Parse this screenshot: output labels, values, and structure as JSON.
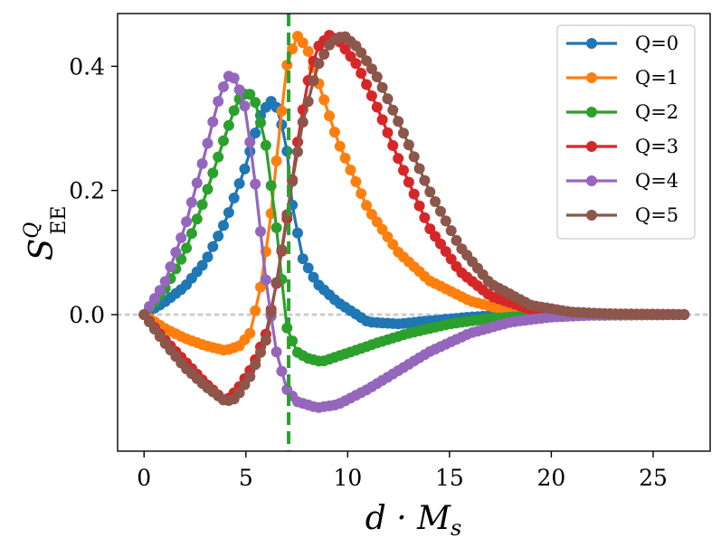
{
  "chart_data": {
    "type": "line",
    "title": "",
    "xlabel": "d · M_s",
    "ylabel": "S_EE^Q",
    "xlabel_parts": {
      "main": "d · M",
      "sub": "s"
    },
    "ylabel_parts": {
      "main": "S",
      "sup": "Q",
      "sub": "EE"
    },
    "xlim": [
      -1.3,
      27.8
    ],
    "ylim": [
      -0.22,
      0.485
    ],
    "xticks": [
      0,
      5,
      10,
      15,
      20,
      25
    ],
    "xtick_labels": [
      "0",
      "5",
      "10",
      "15",
      "20",
      "25"
    ],
    "yticks": [
      0.0,
      0.2,
      0.4
    ],
    "ytick_labels": [
      "0.0",
      "0.2",
      "0.4"
    ],
    "zero_line": {
      "y": 0.0,
      "style": "dotted",
      "color": "#cccccc"
    },
    "vertical_line": {
      "x": 7.1,
      "style": "dashed",
      "color": "#2ca02c"
    },
    "legend_position": "top-right",
    "series": [
      {
        "name": "Q=0",
        "color": "#1f77b4",
        "peak_x": 6.2,
        "peak_y": 0.345,
        "points": [
          [
            0,
            0
          ],
          [
            1,
            0.02
          ],
          [
            2,
            0.045
          ],
          [
            3,
            0.085
          ],
          [
            4,
            0.15
          ],
          [
            5,
            0.24
          ],
          [
            5.7,
            0.32
          ],
          [
            6.2,
            0.345
          ],
          [
            6.6,
            0.33
          ],
          [
            7,
            0.27
          ],
          [
            7.3,
            0.17
          ],
          [
            7.8,
            0.09
          ],
          [
            8.5,
            0.05
          ],
          [
            9.5,
            0.02
          ],
          [
            11,
            -0.012
          ],
          [
            12.5,
            -0.015
          ],
          [
            14,
            -0.01
          ],
          [
            16,
            -0.004
          ],
          [
            18,
            0
          ],
          [
            20,
            0.001
          ],
          [
            26.7,
            0
          ]
        ]
      },
      {
        "name": "Q=1",
        "color": "#ff7f0e",
        "peak_x": 7.5,
        "peak_y": 0.45,
        "points": [
          [
            0,
            0
          ],
          [
            1,
            -0.022
          ],
          [
            2,
            -0.038
          ],
          [
            3,
            -0.05
          ],
          [
            4,
            -0.058
          ],
          [
            4.7,
            -0.05
          ],
          [
            5.2,
            -0.03
          ],
          [
            5.7,
            0.04
          ],
          [
            6.2,
            0.15
          ],
          [
            6.6,
            0.28
          ],
          [
            7,
            0.4
          ],
          [
            7.5,
            0.45
          ],
          [
            8,
            0.43
          ],
          [
            8.5,
            0.38
          ],
          [
            9.5,
            0.28
          ],
          [
            11,
            0.17
          ],
          [
            12.5,
            0.1
          ],
          [
            14,
            0.055
          ],
          [
            16,
            0.022
          ],
          [
            18,
            0.005
          ],
          [
            20,
            0.001
          ],
          [
            26.7,
            0
          ]
        ]
      },
      {
        "name": "Q=2",
        "color": "#2ca02c",
        "peak_x": 5.1,
        "peak_y": 0.36,
        "points": [
          [
            0,
            0
          ],
          [
            1,
            0.04
          ],
          [
            2,
            0.1
          ],
          [
            3,
            0.19
          ],
          [
            4,
            0.29
          ],
          [
            4.6,
            0.345
          ],
          [
            5.1,
            0.36
          ],
          [
            5.5,
            0.34
          ],
          [
            6,
            0.27
          ],
          [
            6.5,
            0.14
          ],
          [
            7,
            -0.02
          ],
          [
            7.5,
            -0.06
          ],
          [
            8,
            -0.07
          ],
          [
            8.7,
            -0.076
          ],
          [
            10,
            -0.062
          ],
          [
            11.5,
            -0.045
          ],
          [
            13,
            -0.03
          ],
          [
            15,
            -0.015
          ],
          [
            17,
            -0.006
          ],
          [
            19,
            -0.002
          ],
          [
            26.7,
            0
          ]
        ]
      },
      {
        "name": "Q=3",
        "color": "#d62728",
        "peak_x": 9.1,
        "peak_y": 0.45,
        "points": [
          [
            0,
            0
          ],
          [
            1,
            -0.04
          ],
          [
            2,
            -0.075
          ],
          [
            3,
            -0.11
          ],
          [
            4,
            -0.14
          ],
          [
            4.6,
            -0.12
          ],
          [
            5.3,
            -0.085
          ],
          [
            6,
            -0.03
          ],
          [
            6.5,
            0.05
          ],
          [
            7,
            0.15
          ],
          [
            7.5,
            0.27
          ],
          [
            8,
            0.37
          ],
          [
            8.5,
            0.43
          ],
          [
            9.1,
            0.45
          ],
          [
            9.6,
            0.44
          ],
          [
            10.5,
            0.4
          ],
          [
            11.5,
            0.33
          ],
          [
            12.5,
            0.25
          ],
          [
            14,
            0.14
          ],
          [
            15.5,
            0.07
          ],
          [
            17,
            0.03
          ],
          [
            19,
            0.008
          ],
          [
            21,
            0.002
          ],
          [
            26.7,
            0
          ]
        ]
      },
      {
        "name": "Q=4",
        "color": "#9467bd",
        "peak_x": 4.1,
        "peak_y": 0.385,
        "points": [
          [
            0,
            0
          ],
          [
            1,
            0.05
          ],
          [
            2,
            0.14
          ],
          [
            3,
            0.26
          ],
          [
            3.6,
            0.34
          ],
          [
            4.1,
            0.385
          ],
          [
            4.5,
            0.38
          ],
          [
            5,
            0.33
          ],
          [
            5.5,
            0.2
          ],
          [
            6,
            0.05
          ],
          [
            6.5,
            -0.06
          ],
          [
            7,
            -0.12
          ],
          [
            7.5,
            -0.14
          ],
          [
            8.5,
            -0.15
          ],
          [
            9.5,
            -0.145
          ],
          [
            11,
            -0.12
          ],
          [
            12.5,
            -0.09
          ],
          [
            14,
            -0.06
          ],
          [
            16,
            -0.03
          ],
          [
            18,
            -0.012
          ],
          [
            20,
            -0.004
          ],
          [
            22,
            -0.001
          ],
          [
            26.7,
            0
          ]
        ]
      },
      {
        "name": "Q=5",
        "color": "#8c564b",
        "peak_x": 9.8,
        "peak_y": 0.45,
        "points": [
          [
            0,
            0
          ],
          [
            1,
            -0.045
          ],
          [
            2,
            -0.085
          ],
          [
            3,
            -0.115
          ],
          [
            4,
            -0.14
          ],
          [
            4.5,
            -0.135
          ],
          [
            5.2,
            -0.1
          ],
          [
            6,
            -0.04
          ],
          [
            6.6,
            0.07
          ],
          [
            7.2,
            0.2
          ],
          [
            7.8,
            0.31
          ],
          [
            8.5,
            0.4
          ],
          [
            9.2,
            0.44
          ],
          [
            9.8,
            0.45
          ],
          [
            10.5,
            0.43
          ],
          [
            11.5,
            0.38
          ],
          [
            12.5,
            0.31
          ],
          [
            14,
            0.2
          ],
          [
            15.5,
            0.11
          ],
          [
            17,
            0.05
          ],
          [
            19,
            0.015
          ],
          [
            21,
            0.004
          ],
          [
            23,
            0.001
          ],
          [
            26.7,
            0
          ]
        ]
      }
    ]
  }
}
